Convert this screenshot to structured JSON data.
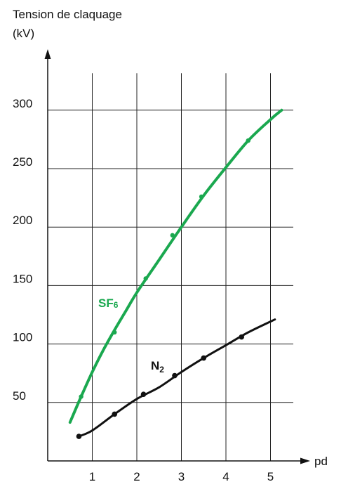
{
  "chart_data": {
    "type": "line",
    "ylabel_line1": "Tension de claquage",
    "ylabel_line2": "(kV)",
    "xlabel": "pd",
    "xlim": [
      0,
      5.5
    ],
    "ylim": [
      0,
      340
    ],
    "x_ticks": [
      1,
      2,
      3,
      4,
      5
    ],
    "y_ticks": [
      50,
      100,
      150,
      200,
      250,
      300
    ],
    "grid": true,
    "series": [
      {
        "name": "SF",
        "name_sub": "6",
        "color": "#1aa84f",
        "curve": [
          [
            0.5,
            33
          ],
          [
            0.75,
            55
          ],
          [
            1.0,
            76
          ],
          [
            1.25,
            95
          ],
          [
            1.5,
            112
          ],
          [
            1.75,
            128
          ],
          [
            2.0,
            144
          ],
          [
            2.5,
            172
          ],
          [
            3.0,
            200
          ],
          [
            3.5,
            227
          ],
          [
            4.0,
            251
          ],
          [
            4.5,
            274
          ],
          [
            5.0,
            292
          ],
          [
            5.25,
            300
          ]
        ],
        "points": [
          [
            0.75,
            55
          ],
          [
            1.5,
            110
          ],
          [
            2.2,
            156
          ],
          [
            2.8,
            193
          ],
          [
            3.45,
            226
          ],
          [
            4.5,
            274
          ]
        ]
      },
      {
        "name": "N",
        "name_sub": "2",
        "color": "#111111",
        "curve": [
          [
            0.7,
            21
          ],
          [
            1.0,
            26
          ],
          [
            1.5,
            40
          ],
          [
            2.0,
            53
          ],
          [
            2.5,
            63
          ],
          [
            3.0,
            76
          ],
          [
            3.5,
            88
          ],
          [
            4.0,
            99
          ],
          [
            4.5,
            110
          ],
          [
            5.1,
            121
          ]
        ],
        "points": [
          [
            0.7,
            21
          ],
          [
            1.5,
            40
          ],
          [
            2.15,
            57
          ],
          [
            2.85,
            73
          ],
          [
            3.5,
            88
          ],
          [
            4.35,
            106
          ]
        ]
      }
    ]
  }
}
